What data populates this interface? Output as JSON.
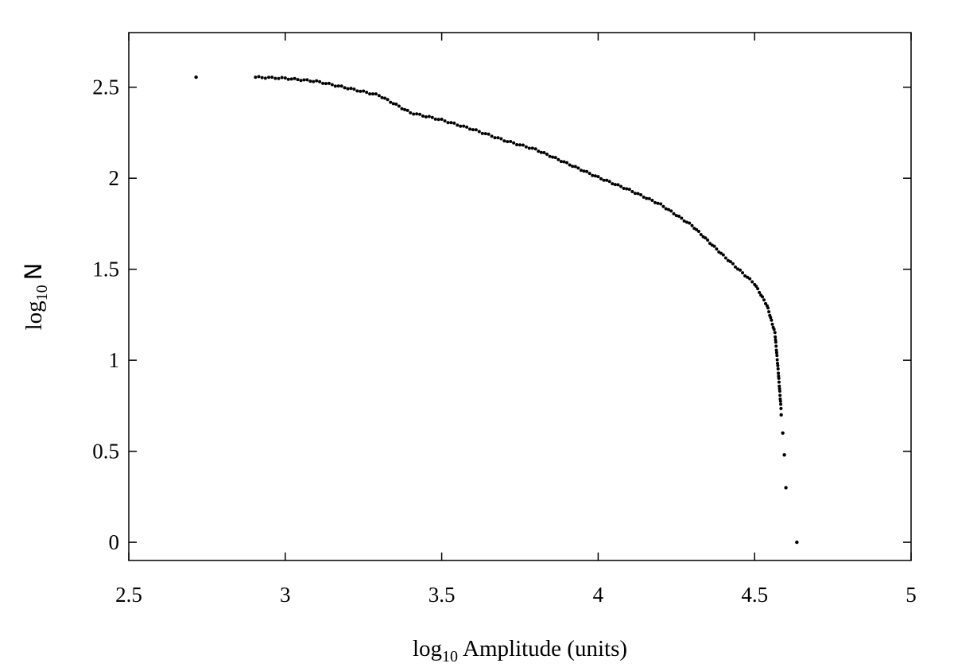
{
  "chart_data": {
    "type": "scatter",
    "title": "",
    "xlabel": {
      "base": "log",
      "sub": "10",
      "text": "Amplitude (units)"
    },
    "ylabel": {
      "base": "log",
      "sub": "10",
      "text": "N"
    },
    "xlim": [
      2.5,
      5
    ],
    "ylim": [
      -0.1,
      2.8
    ],
    "xticks": [
      2.5,
      3,
      3.5,
      4,
      4.5,
      5
    ],
    "xtick_labels": [
      "2.5",
      "3",
      "3.5",
      "4",
      "4.5",
      "5"
    ],
    "yticks": [
      0,
      0.5,
      1,
      1.5,
      2,
      2.5
    ],
    "ytick_labels": [
      "0",
      "0.5",
      "1",
      "1.5",
      "2",
      "2.5"
    ],
    "grid": false,
    "legend": "none",
    "marker_color": "#000000",
    "curve": [
      [
        2.905,
        2.555
      ],
      [
        3.0,
        2.549
      ],
      [
        3.1,
        2.532
      ],
      [
        3.2,
        2.495
      ],
      [
        3.3,
        2.455
      ],
      [
        3.4,
        2.36
      ],
      [
        3.5,
        2.32
      ],
      [
        3.6,
        2.268
      ],
      [
        3.7,
        2.208
      ],
      [
        3.8,
        2.158
      ],
      [
        3.9,
        2.082
      ],
      [
        4.0,
        2.005
      ],
      [
        4.1,
        1.935
      ],
      [
        4.2,
        1.855
      ],
      [
        4.3,
        1.74
      ],
      [
        4.4,
        1.575
      ],
      [
        4.5,
        1.42
      ],
      [
        4.54,
        1.3
      ],
      [
        4.565,
        1.15
      ],
      [
        4.575,
        0.95
      ],
      [
        4.585,
        0.72
      ]
    ],
    "points": [
      [
        2.715,
        2.555
      ],
      [
        4.585,
        0.7
      ],
      [
        4.59,
        0.6
      ],
      [
        4.595,
        0.48
      ],
      [
        4.6,
        0.3
      ],
      [
        4.635,
        0.0
      ]
    ]
  }
}
